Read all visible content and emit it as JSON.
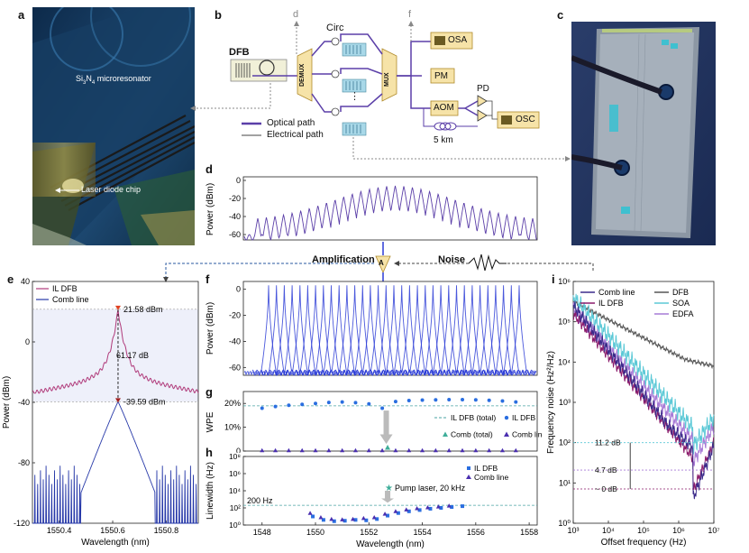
{
  "panel_labels": [
    "a",
    "b",
    "c",
    "d",
    "e",
    "f",
    "g",
    "h",
    "i"
  ],
  "panel_a": {
    "microresonator_label": "Si",
    "microresonator_sub1": "3",
    "microresonator_n": "N",
    "microresonator_sub2": "4",
    "microresonator_rest": " microresonator",
    "laser_label": "Laser diode chip"
  },
  "panel_b": {
    "dfb": "DFB",
    "demux": "DEMUX",
    "mux": "MUX",
    "circ": "Circ",
    "osa": "OSA",
    "pm": "PM",
    "aom": "AOM",
    "pd": "PD",
    "osc": "OSC",
    "fiber": "5 km",
    "d_marker": "d",
    "f_marker": "f",
    "dots": "⋮",
    "legend_optical": "Optical path",
    "legend_electrical": "Electrical path",
    "colors": {
      "optical": "#5b3fa8",
      "box": "#f6e3a8",
      "box_border": "#b08a2a"
    }
  },
  "amplification": {
    "amp_label": "Amplification",
    "noise_label": "Noise",
    "amp_symbol": "A"
  },
  "chart_data": [
    {
      "id": "d",
      "type": "line",
      "title": "",
      "xlabel": "",
      "ylabel": "Power (dBm)",
      "yticks": [
        -60,
        -40,
        -20,
        0
      ],
      "ylim": [
        -66,
        4
      ],
      "comb_lines": 33,
      "peak_dbm": -6,
      "edge_dbm": -45,
      "floor_dbm": -63,
      "color": "#5b3fa8"
    },
    {
      "id": "e",
      "type": "line",
      "xlabel": "Wavelength (nm)",
      "ylabel": "Power (dBm)",
      "xticks": [
        1550.4,
        1550.6,
        1550.8
      ],
      "xlim": [
        1550.3,
        1550.92
      ],
      "yticks": [
        40,
        0,
        -40,
        -80,
        -120
      ],
      "ylim": [
        -120,
        40
      ],
      "series": [
        {
          "name": "IL DFB",
          "color": "#b03a7a",
          "peak": 21.58
        },
        {
          "name": "Comb line",
          "color": "#2638a8",
          "peak": -39.59
        }
      ],
      "annotations": {
        "peak_il": "21.58 dBm",
        "peak_comb": "-39.59 dBm",
        "diff": "61.17 dB"
      }
    },
    {
      "id": "f",
      "type": "line",
      "ylabel": "Power (dBm)",
      "yticks": [
        0,
        -20,
        -40,
        -60
      ],
      "ylim": [
        -66,
        6
      ],
      "comb_lines": 33,
      "peak_dbm": 3,
      "floor_dbm": -64,
      "color": "#2a3bd6"
    },
    {
      "id": "g",
      "type": "scatter",
      "ylabel": "WPE",
      "yticks": [
        "0",
        "10%",
        "20%"
      ],
      "ylim": [
        0,
        25
      ],
      "xlim": [
        1547.3,
        1558.3
      ],
      "series": [
        {
          "name": "IL DFB (total)",
          "style": "dashed",
          "color": "#4aa3a3",
          "value": 19
        },
        {
          "name": "IL DFB",
          "marker": "circle",
          "color": "#2a6ee0",
          "x": [
            1548,
            1548.5,
            1549,
            1549.5,
            1550,
            1550.5,
            1551,
            1551.5,
            1552,
            1552.5,
            1553,
            1553.5,
            1554,
            1554.5,
            1555,
            1555.5,
            1556,
            1556.5,
            1557,
            1557.5
          ],
          "values": [
            18,
            18.7,
            19.2,
            19.6,
            20,
            20.4,
            20.6,
            20.3,
            19.8,
            18,
            20.8,
            21.2,
            21.4,
            21.5,
            21.6,
            21.6,
            21.5,
            21.3,
            21,
            20.6
          ]
        },
        {
          "name": "Comb (total)",
          "marker": "triangle",
          "color": "#3fae9a",
          "x": [
            1552.7
          ],
          "values": [
            1.5
          ]
        },
        {
          "name": "Comb line",
          "marker": "triangle",
          "color": "#4a2fb0",
          "x": [
            1548,
            1548.5,
            1549,
            1549.5,
            1550,
            1550.5,
            1551,
            1551.5,
            1552,
            1552.5,
            1553,
            1553.5,
            1554,
            1554.5,
            1555,
            1555.5,
            1556,
            1556.5,
            1557,
            1557.5
          ],
          "values": [
            0.3,
            0.3,
            0.3,
            0.3,
            0.3,
            0.3,
            0.3,
            0.3,
            0.3,
            0.3,
            0.3,
            0.3,
            0.3,
            0.3,
            0.3,
            0.3,
            0.3,
            0.3,
            0.3,
            0.3
          ]
        }
      ]
    },
    {
      "id": "h",
      "type": "scatter",
      "xlabel": "Wavelength (nm)",
      "ylabel": "Linewidth (Hz)",
      "xticks": [
        1548,
        1550,
        1552,
        1554,
        1556,
        1558
      ],
      "xlim": [
        1547.3,
        1558.3
      ],
      "yticks": [
        "10⁰",
        "10²",
        "10⁴",
        "10⁶",
        "10⁸"
      ],
      "ylog": true,
      "ylim_exp": [
        0,
        8
      ],
      "annotations": {
        "reference": "200 Hz",
        "pump": "Pump laser, 20 kHz"
      },
      "series": [
        {
          "name": "IL DFB",
          "marker": "square",
          "color": "#2a6ee0",
          "x": [
            1549.9,
            1550.3,
            1550.7,
            1551.1,
            1551.5,
            1551.9,
            1552.3,
            1552.7,
            1553.1,
            1553.5,
            1553.9,
            1554.3,
            1554.7,
            1555.1,
            1555.5
          ],
          "values_exp": [
            1.0,
            0.6,
            0.45,
            0.5,
            0.6,
            0.55,
            0.7,
            1.1,
            1.4,
            1.6,
            1.75,
            1.9,
            2.0,
            2.1,
            2.2
          ]
        },
        {
          "name": "Comb line",
          "marker": "triangle",
          "color": "#4a2fb0",
          "x": [
            1549.8,
            1550.2,
            1550.6,
            1551,
            1551.4,
            1551.8,
            1552.2,
            1552.6,
            1553,
            1553.4,
            1553.8,
            1554.2,
            1554.6,
            1555
          ],
          "values_exp": [
            1.4,
            0.9,
            0.7,
            0.65,
            0.7,
            0.8,
            0.9,
            1.3,
            1.6,
            1.8,
            1.95,
            2.05,
            2.15,
            2.25
          ]
        },
        {
          "name": "Pump laser",
          "marker": "star",
          "color": "#3fae9a",
          "x": [
            1552.7
          ],
          "values_exp": [
            4.3
          ]
        }
      ]
    },
    {
      "id": "i",
      "type": "line",
      "xlabel": "Offset frequency (Hz)",
      "ylabel": "Frequency noise (Hz²/Hz)",
      "xticks": [
        "10³",
        "10⁴",
        "10⁵",
        "10⁶",
        "10⁷"
      ],
      "xlim_exp": [
        3,
        7
      ],
      "yticks": [
        "10⁰",
        "10¹",
        "10²",
        "10³",
        "10⁴",
        "10⁵",
        "10⁶"
      ],
      "ylim_exp": [
        0,
        6
      ],
      "series": [
        {
          "name": "Comb line",
          "color": "#3b2a8a"
        },
        {
          "name": "IL DFB",
          "color": "#8a1a6a"
        },
        {
          "name": "DFB",
          "color": "#555555"
        },
        {
          "name": "SOA",
          "color": "#5ac8d6"
        },
        {
          "name": "EDFA",
          "color": "#a77ad6"
        }
      ],
      "annotations": {
        "a1": "11.2 dB",
        "a2": "4.7 dB",
        "a3": "~ 0 dB"
      }
    }
  ]
}
